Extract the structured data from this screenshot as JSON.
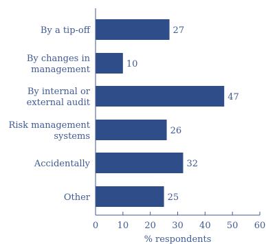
{
  "chart_data": {
    "type": "bar",
    "orientation": "horizontal",
    "title": "",
    "xlabel": "% respondents",
    "ylabel": "",
    "xlim": [
      0,
      60
    ],
    "xticks": [
      0,
      10,
      20,
      30,
      40,
      50,
      60
    ],
    "grid": false,
    "categories": [
      [
        "By a tip-off"
      ],
      [
        "By changes in",
        "management"
      ],
      [
        "By internal or",
        "external audit"
      ],
      [
        "Risk management",
        "systems"
      ],
      [
        "Accidentally"
      ],
      [
        "Other"
      ]
    ],
    "values": [
      27,
      10,
      47,
      26,
      32,
      25
    ],
    "colors": {
      "bar": "#2f4d88",
      "axis": "#3f5a92",
      "text": "#3f5a92"
    }
  }
}
